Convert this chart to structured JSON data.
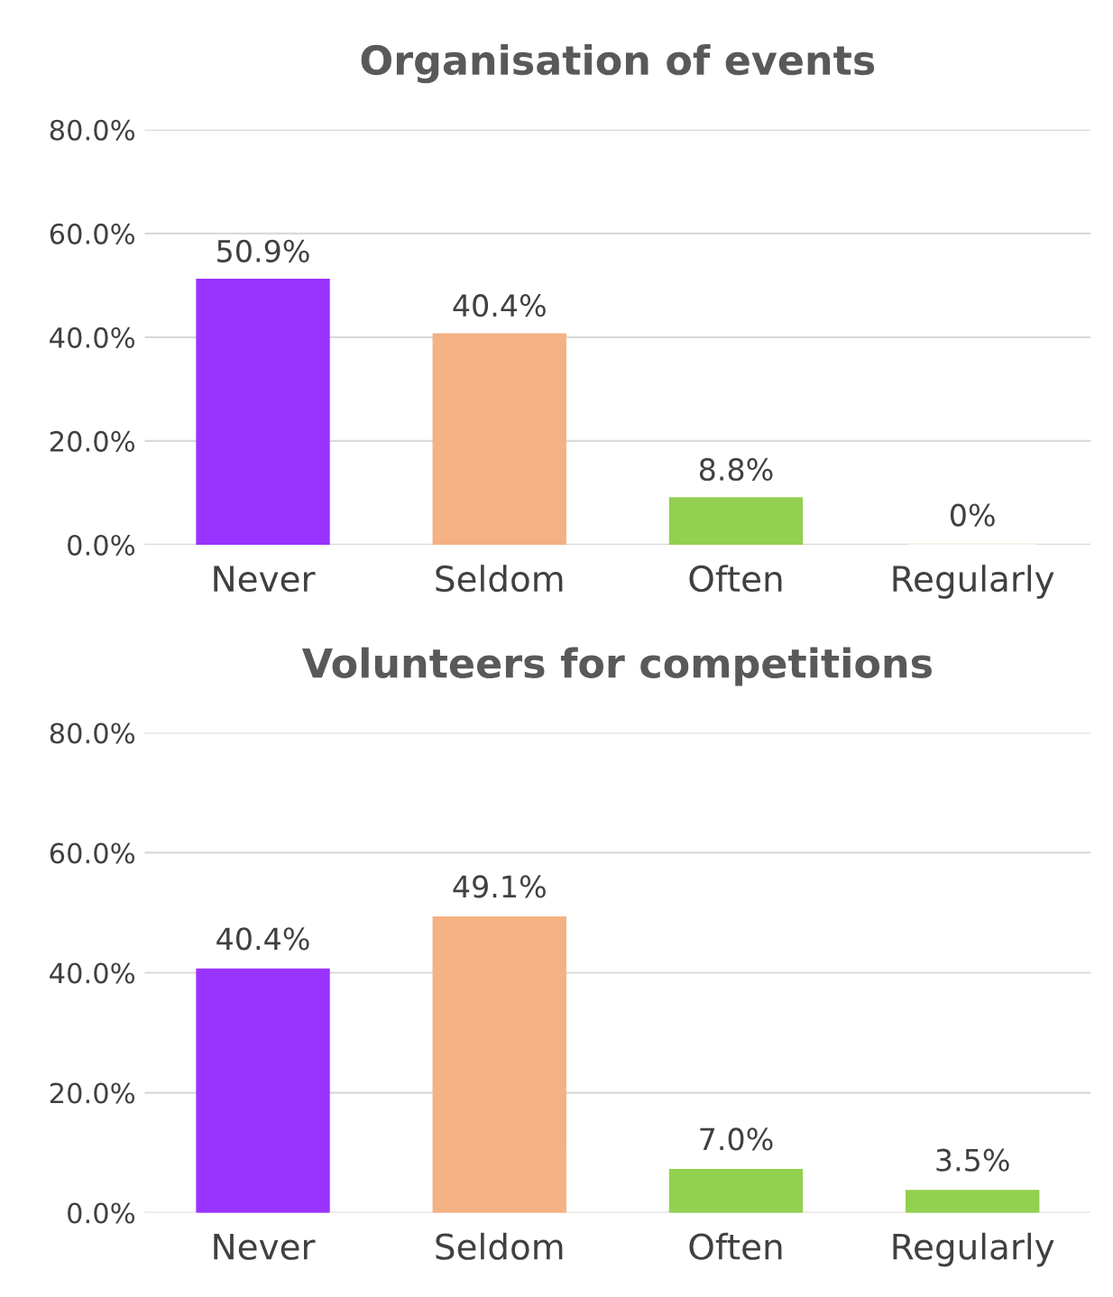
{
  "chart_data": [
    {
      "type": "bar",
      "title": "Organisation of events",
      "categories": [
        "Never",
        "Seldom",
        "Often",
        "Regularly"
      ],
      "values": [
        50.9,
        40.4,
        8.8,
        0
      ],
      "colors": [
        "#9933ff",
        "#f4b183",
        "#92d050",
        "#eef6e6"
      ],
      "value_labels": [
        "50.9%",
        "40.4%",
        "8.8%",
        "0%"
      ],
      "ylim": [
        0,
        80
      ],
      "yticks": [
        {
          "value": 0,
          "label": "0.0%"
        },
        {
          "value": 20,
          "label": "20.0%"
        },
        {
          "value": 40,
          "label": "40.0%"
        },
        {
          "value": 60,
          "label": "60.0%"
        },
        {
          "value": 80,
          "label": "80.0%"
        }
      ],
      "grid": "y"
    },
    {
      "type": "bar",
      "title": "Volunteers for competitions",
      "categories": [
        "Never",
        "Seldom",
        "Often",
        "Regularly"
      ],
      "values": [
        40.4,
        49.1,
        7.0,
        3.5
      ],
      "colors": [
        "#9933ff",
        "#f4b183",
        "#92d050",
        "#92d050"
      ],
      "value_labels": [
        "40.4%",
        "49.1%",
        "7.0%",
        "3.5%"
      ],
      "ylim": [
        0,
        80
      ],
      "yticks": [
        {
          "value": 0,
          "label": "0.0%"
        },
        {
          "value": 20,
          "label": "20.0%"
        },
        {
          "value": 40,
          "label": "40.0%"
        },
        {
          "value": 60,
          "label": "60.0%"
        },
        {
          "value": 80,
          "label": "80.0%"
        }
      ],
      "grid": "y"
    }
  ]
}
